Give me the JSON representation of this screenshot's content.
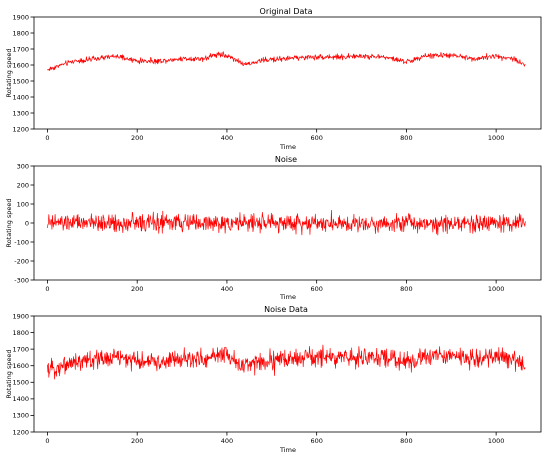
{
  "figure": {
    "background": "#ffffff",
    "line_color": "#ff0000"
  },
  "chart_data": [
    {
      "type": "line",
      "title": "Original Data",
      "xlabel": "Time",
      "ylabel": "Rotating speed",
      "xlim": [
        -30,
        1100
      ],
      "ylim": [
        1200,
        1900
      ],
      "xticks": [
        0,
        200,
        400,
        600,
        800,
        1000
      ],
      "yticks": [
        1200,
        1300,
        1400,
        1500,
        1600,
        1700,
        1800,
        1900
      ],
      "grid": false,
      "series": [
        {
          "color": "#ff0000",
          "n_points": 1065,
          "x_start": 0,
          "x_end": 1065,
          "trend": [
            {
              "x": 0,
              "y": 1570
            },
            {
              "x": 30,
              "y": 1600
            },
            {
              "x": 60,
              "y": 1625
            },
            {
              "x": 100,
              "y": 1635
            },
            {
              "x": 150,
              "y": 1655
            },
            {
              "x": 200,
              "y": 1625
            },
            {
              "x": 250,
              "y": 1625
            },
            {
              "x": 300,
              "y": 1640
            },
            {
              "x": 350,
              "y": 1640
            },
            {
              "x": 380,
              "y": 1670
            },
            {
              "x": 410,
              "y": 1650
            },
            {
              "x": 440,
              "y": 1600
            },
            {
              "x": 480,
              "y": 1630
            },
            {
              "x": 550,
              "y": 1645
            },
            {
              "x": 600,
              "y": 1650
            },
            {
              "x": 650,
              "y": 1650
            },
            {
              "x": 700,
              "y": 1655
            },
            {
              "x": 750,
              "y": 1650
            },
            {
              "x": 800,
              "y": 1620
            },
            {
              "x": 850,
              "y": 1660
            },
            {
              "x": 900,
              "y": 1660
            },
            {
              "x": 950,
              "y": 1640
            },
            {
              "x": 1000,
              "y": 1655
            },
            {
              "x": 1040,
              "y": 1640
            },
            {
              "x": 1065,
              "y": 1600
            }
          ],
          "noise_amplitude": 18
        }
      ]
    },
    {
      "type": "line",
      "title": "Noise",
      "xlabel": "Time",
      "ylabel": "Rotating speed",
      "xlim": [
        -30,
        1100
      ],
      "ylim": [
        -300,
        300
      ],
      "xticks": [
        0,
        200,
        400,
        600,
        800,
        1000
      ],
      "yticks": [
        -300,
        -200,
        -100,
        0,
        100,
        200,
        300
      ],
      "grid": false,
      "series": [
        {
          "color": "#ff0000",
          "n_points": 1065,
          "x_start": 0,
          "x_end": 1065,
          "trend": [
            {
              "x": 0,
              "y": 0
            },
            {
              "x": 1065,
              "y": 0
            }
          ],
          "noise_amplitude": 50
        }
      ]
    },
    {
      "type": "line",
      "title": "Noise Data",
      "xlabel": "Time",
      "ylabel": "Rotating speed",
      "xlim": [
        -30,
        1100
      ],
      "ylim": [
        1200,
        1900
      ],
      "xticks": [
        0,
        200,
        400,
        600,
        800,
        1000
      ],
      "yticks": [
        1200,
        1300,
        1400,
        1500,
        1600,
        1700,
        1800,
        1900
      ],
      "grid": false,
      "series": [
        {
          "color": "#ff0000",
          "n_points": 1065,
          "x_start": 0,
          "x_end": 1065,
          "trend": [
            {
              "x": 0,
              "y": 1570
            },
            {
              "x": 30,
              "y": 1600
            },
            {
              "x": 60,
              "y": 1625
            },
            {
              "x": 100,
              "y": 1635
            },
            {
              "x": 150,
              "y": 1655
            },
            {
              "x": 200,
              "y": 1625
            },
            {
              "x": 250,
              "y": 1625
            },
            {
              "x": 300,
              "y": 1640
            },
            {
              "x": 350,
              "y": 1640
            },
            {
              "x": 380,
              "y": 1670
            },
            {
              "x": 410,
              "y": 1650
            },
            {
              "x": 440,
              "y": 1600
            },
            {
              "x": 480,
              "y": 1630
            },
            {
              "x": 550,
              "y": 1645
            },
            {
              "x": 600,
              "y": 1650
            },
            {
              "x": 650,
              "y": 1650
            },
            {
              "x": 700,
              "y": 1655
            },
            {
              "x": 750,
              "y": 1650
            },
            {
              "x": 800,
              "y": 1620
            },
            {
              "x": 850,
              "y": 1660
            },
            {
              "x": 900,
              "y": 1660
            },
            {
              "x": 950,
              "y": 1640
            },
            {
              "x": 1000,
              "y": 1655
            },
            {
              "x": 1040,
              "y": 1640
            },
            {
              "x": 1065,
              "y": 1600
            }
          ],
          "noise_amplitude": 60
        }
      ]
    }
  ]
}
